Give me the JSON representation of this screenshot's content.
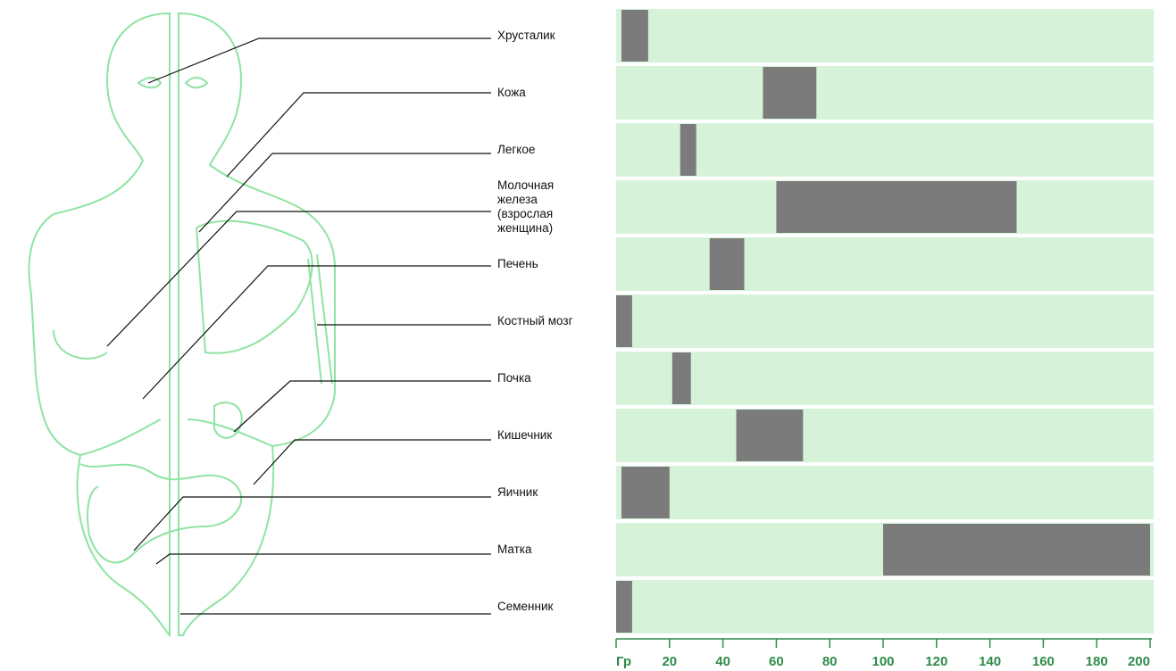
{
  "chart_data": {
    "type": "range-bar",
    "categories": [
      "Хрусталик",
      "Кожа",
      "Легкое",
      "Молочная\nжелеза\n(взрослая\nженщина)",
      "Печень",
      "Костный мозг",
      "Почка",
      "Кишечник",
      "Яичник",
      "Матка",
      "Семенник"
    ],
    "ranges": [
      [
        2,
        12
      ],
      [
        55,
        75
      ],
      [
        24,
        30
      ],
      [
        60,
        150
      ],
      [
        35,
        48
      ],
      [
        0,
        6
      ],
      [
        21,
        28
      ],
      [
        45,
        70
      ],
      [
        2,
        20
      ],
      [
        100,
        200
      ],
      [
        0,
        6
      ]
    ],
    "color": "#7b7b7b",
    "xlim": [
      0,
      200
    ],
    "xticks": [
      {
        "value": 0,
        "label": "Гр"
      },
      20,
      40,
      60,
      80,
      100,
      120,
      140,
      160,
      180,
      200
    ]
  }
}
